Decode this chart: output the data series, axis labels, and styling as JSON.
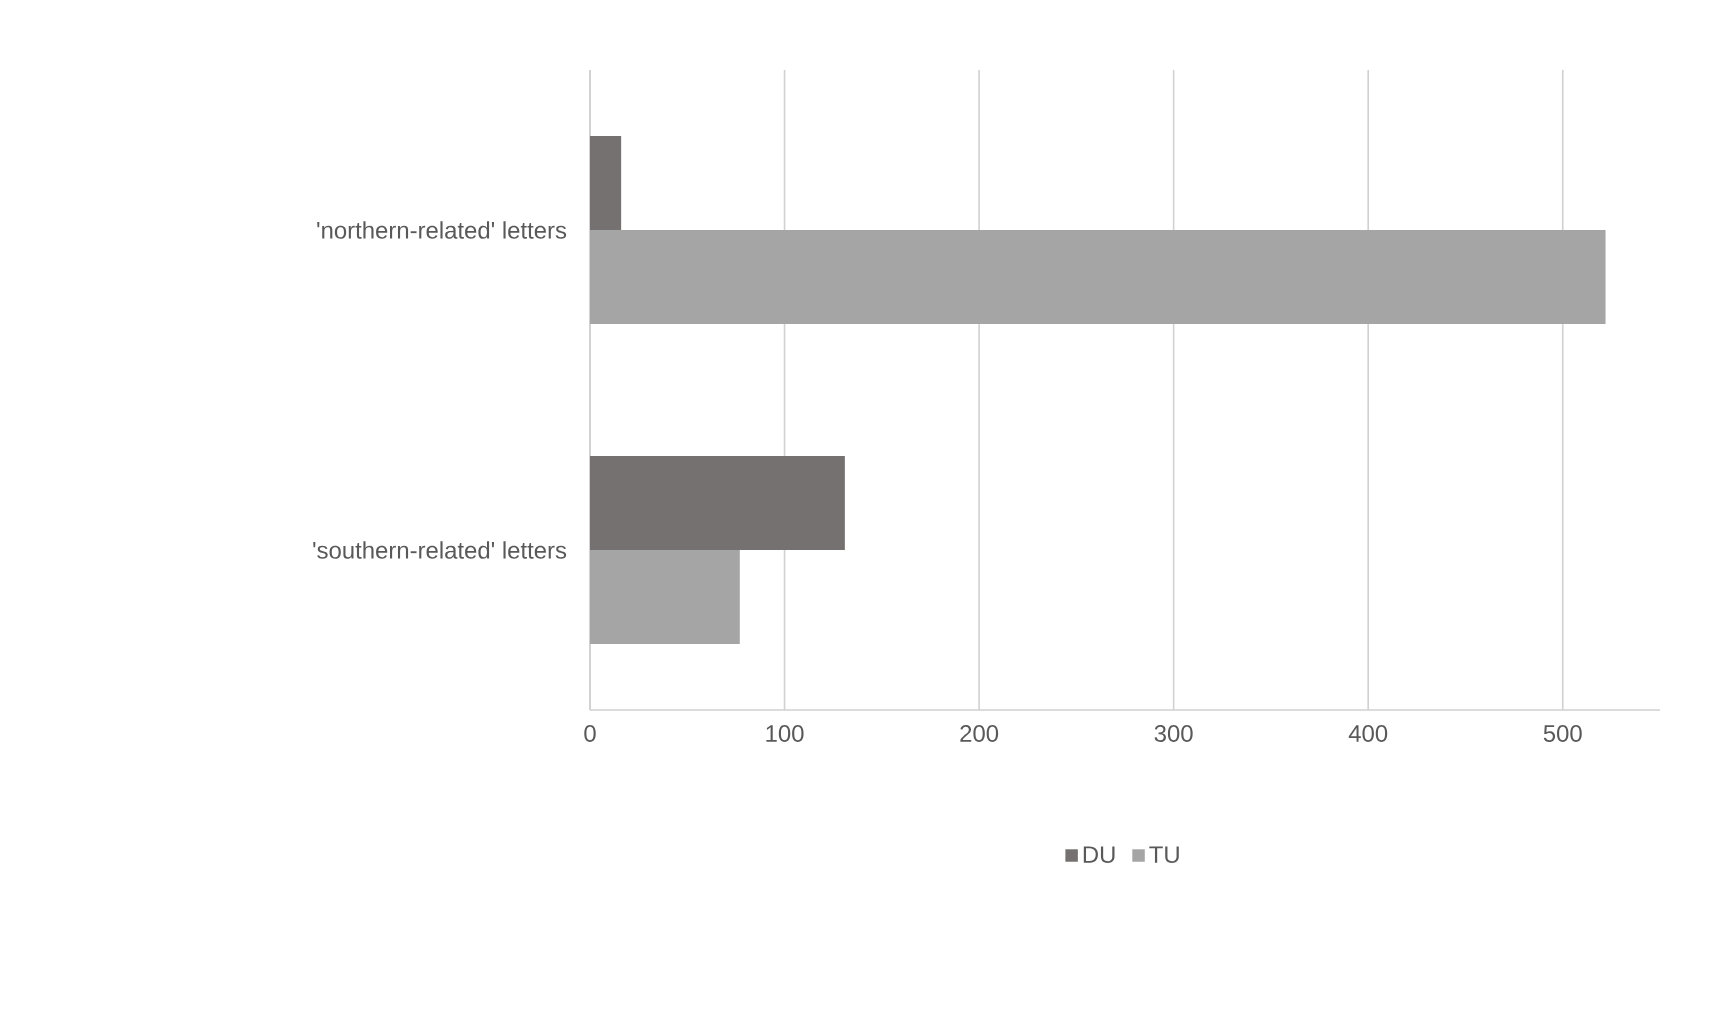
{
  "chart_data": {
    "type": "bar",
    "orientation": "horizontal",
    "categories": [
      "'northern-related' letters",
      "'southern-related' letters"
    ],
    "series": [
      {
        "name": "DU",
        "color": "#767171",
        "values": [
          16,
          131
        ]
      },
      {
        "name": "TU",
        "color": "#a5a5a5",
        "values": [
          522,
          77
        ]
      }
    ],
    "xlim": [
      0,
      550
    ],
    "xticks": [
      0,
      100,
      200,
      300,
      400,
      500
    ],
    "grid": "x",
    "legend": "bottom"
  }
}
